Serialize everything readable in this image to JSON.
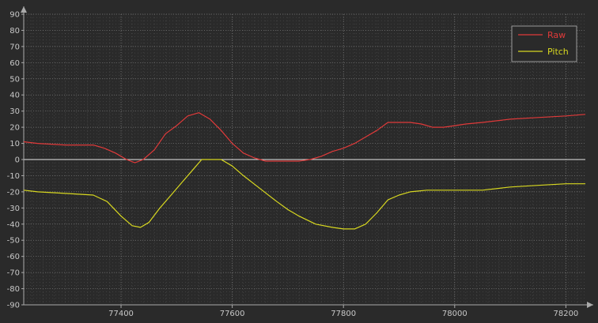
{
  "chart_data": {
    "type": "line",
    "title": "",
    "xlabel": "",
    "ylabel": "",
    "xlim": [
      77225,
      78235
    ],
    "ylim": [
      -90,
      90
    ],
    "x_ticks": [
      77400,
      77600,
      77800,
      78000,
      78200
    ],
    "y_ticks": [
      90,
      80,
      70,
      60,
      50,
      40,
      30,
      20,
      10,
      0,
      -10,
      -20,
      -30,
      -40,
      -50,
      -60,
      -70,
      -80,
      -90
    ],
    "grid": true,
    "zero_line": true,
    "legend": "top-right",
    "background_color": "#2a2a2a",
    "axis_color": "#aaaaaa",
    "grid_color": "#8a8a8a",
    "series": [
      {
        "name": "Raw",
        "color": "#e03a3a",
        "x": [
          77225,
          77250,
          77300,
          77350,
          77370,
          77390,
          77410,
          77425,
          77440,
          77460,
          77480,
          77500,
          77520,
          77540,
          77560,
          77580,
          77600,
          77620,
          77640,
          77660,
          77680,
          77700,
          77720,
          77740,
          77760,
          77780,
          77800,
          77820,
          77840,
          77860,
          77880,
          77900,
          77920,
          77940,
          77960,
          77980,
          78000,
          78020,
          78050,
          78100,
          78150,
          78200,
          78235
        ],
        "y": [
          11,
          10,
          9,
          9,
          7,
          4,
          0,
          -2,
          0,
          6,
          16,
          21,
          27,
          29,
          25,
          18,
          10,
          4,
          1,
          -1,
          -1,
          -1,
          -1,
          0,
          2,
          5,
          7,
          10,
          14,
          18,
          23,
          23,
          23,
          22,
          20,
          20,
          21,
          22,
          23,
          25,
          26,
          27,
          28
        ]
      },
      {
        "name": "Pitch",
        "color": "#d8d820",
        "x": [
          77225,
          77250,
          77300,
          77350,
          77375,
          77400,
          77420,
          77435,
          77450,
          77470,
          77490,
          77510,
          77530,
          77545,
          77560,
          77580,
          77600,
          77620,
          77650,
          77680,
          77700,
          77720,
          77750,
          77780,
          77800,
          77820,
          77840,
          77860,
          77880,
          77900,
          77920,
          77950,
          78000,
          78050,
          78100,
          78150,
          78200,
          78235
        ],
        "y": [
          -19,
          -20,
          -21,
          -22,
          -26,
          -35,
          -41,
          -42,
          -39,
          -30,
          -22,
          -14,
          -6,
          0,
          0,
          0,
          -4,
          -10,
          -18,
          -26,
          -31,
          -35,
          -40,
          -42,
          -43,
          -43,
          -40,
          -33,
          -25,
          -22,
          -20,
          -19,
          -19,
          -19,
          -17,
          -16,
          -15,
          -15
        ]
      }
    ]
  }
}
